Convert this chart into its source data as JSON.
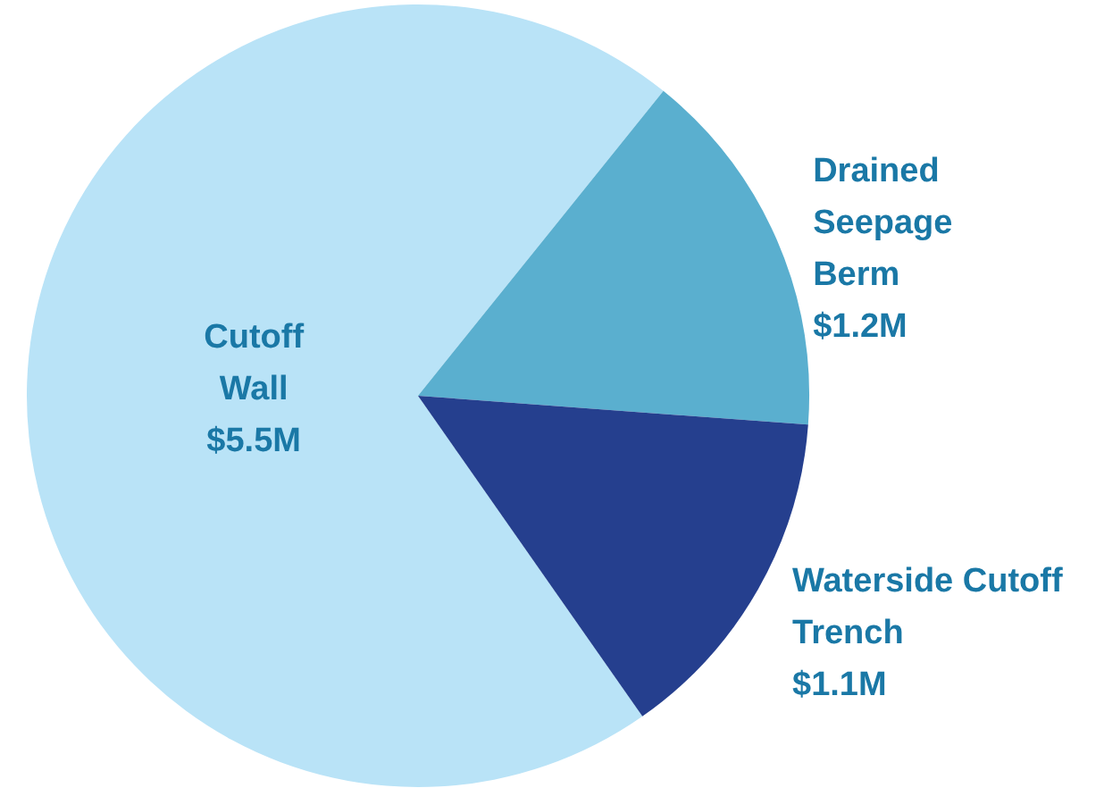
{
  "chart_data": {
    "type": "pie",
    "categories": [
      "Cutoff Wall",
      "Drained Seepage Berm",
      "Waterside Cutoff Trench"
    ],
    "values": [
      5.5,
      1.2,
      1.1
    ],
    "value_labels": [
      "$5.5M",
      "$1.2M",
      "$1.1M"
    ],
    "colors": [
      "#b9e3f7",
      "#5aafcf",
      "#253f8e"
    ],
    "legend": false
  }
}
